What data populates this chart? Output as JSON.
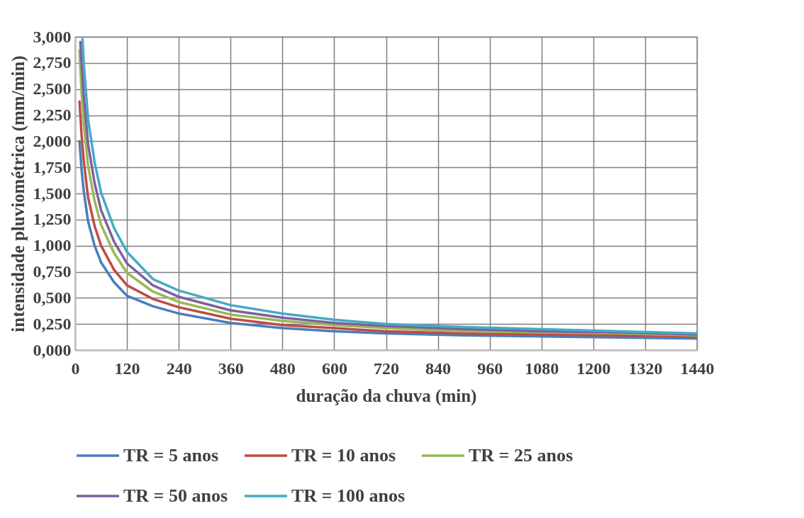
{
  "chart_data": {
    "type": "line",
    "xlabel": "duração da chuva (min)",
    "ylabel": "intensidade pluviométrica (mm/min)",
    "xlim": [
      0,
      1440
    ],
    "xticks": [
      0,
      120,
      240,
      360,
      480,
      600,
      720,
      840,
      960,
      1080,
      1200,
      1320,
      1440
    ],
    "ylim": [
      0,
      3
    ],
    "yticks": [
      {
        "value": 0,
        "label": "0,000"
      },
      {
        "value": 0.25,
        "label": "0,250"
      },
      {
        "value": 0.5,
        "label": "0,500"
      },
      {
        "value": 0.75,
        "label": "0,750"
      },
      {
        "value": 1,
        "label": "1,000"
      },
      {
        "value": 1.25,
        "label": "1,250"
      },
      {
        "value": 1.5,
        "label": "1,500"
      },
      {
        "value": 1.75,
        "label": "1,750"
      },
      {
        "value": 2,
        "label": "2,000"
      },
      {
        "value": 2.25,
        "label": "2,250"
      },
      {
        "value": 2.5,
        "label": "2,500"
      },
      {
        "value": 2.75,
        "label": "2,750"
      },
      {
        "value": 3,
        "label": "3,000"
      }
    ],
    "grid": true,
    "legend": "bottom",
    "marker": "none",
    "line_style": "solid",
    "series": [
      {
        "name": "TR = 5 anos",
        "color": "#4a7ebb",
        "x": [
          10,
          15,
          20,
          30,
          45,
          60,
          90,
          120,
          180,
          240,
          360,
          480,
          600,
          720,
          900,
          1080,
          1260,
          1440
        ],
        "values": [
          2.0,
          1.72,
          1.52,
          1.23,
          1.0,
          0.84,
          0.65,
          0.52,
          0.42,
          0.35,
          0.26,
          0.21,
          0.18,
          0.16,
          0.14,
          0.13,
          0.12,
          0.11
        ]
      },
      {
        "name": "TR = 10 anos",
        "color": "#be4b48",
        "x": [
          10,
          15,
          20,
          30,
          45,
          60,
          90,
          120,
          180,
          240,
          360,
          480,
          600,
          720,
          900,
          1080,
          1260,
          1440
        ],
        "values": [
          2.38,
          2.05,
          1.81,
          1.46,
          1.19,
          1.0,
          0.77,
          0.62,
          0.49,
          0.41,
          0.3,
          0.24,
          0.21,
          0.18,
          0.16,
          0.15,
          0.14,
          0.13
        ]
      },
      {
        "name": "TR = 25 anos",
        "color": "#98b954",
        "x": [
          10,
          15,
          20,
          30,
          45,
          60,
          90,
          120,
          180,
          240,
          360,
          480,
          600,
          720,
          900,
          1080,
          1260,
          1440
        ],
        "values": [
          2.87,
          2.46,
          2.17,
          1.76,
          1.43,
          1.2,
          0.93,
          0.74,
          0.56,
          0.46,
          0.34,
          0.28,
          0.24,
          0.21,
          0.18,
          0.17,
          0.16,
          0.14
        ]
      },
      {
        "name": "TR = 50 anos",
        "color": "#7d60a0",
        "x": [
          12,
          15,
          20,
          30,
          45,
          60,
          90,
          120,
          180,
          240,
          360,
          480,
          600,
          720,
          900,
          1080,
          1260,
          1440
        ],
        "values": [
          2.95,
          2.75,
          2.43,
          1.97,
          1.6,
          1.34,
          1.04,
          0.83,
          0.62,
          0.51,
          0.38,
          0.31,
          0.26,
          0.23,
          0.2,
          0.18,
          0.17,
          0.15
        ]
      },
      {
        "name": "TR = 100 anos",
        "color": "#46aac5",
        "x": [
          17,
          20,
          30,
          45,
          60,
          90,
          120,
          180,
          240,
          360,
          480,
          600,
          720,
          900,
          1080,
          1260,
          1440
        ],
        "values": [
          2.98,
          2.74,
          2.21,
          1.8,
          1.51,
          1.17,
          0.94,
          0.68,
          0.57,
          0.43,
          0.35,
          0.29,
          0.25,
          0.22,
          0.2,
          0.18,
          0.16
        ]
      }
    ]
  }
}
